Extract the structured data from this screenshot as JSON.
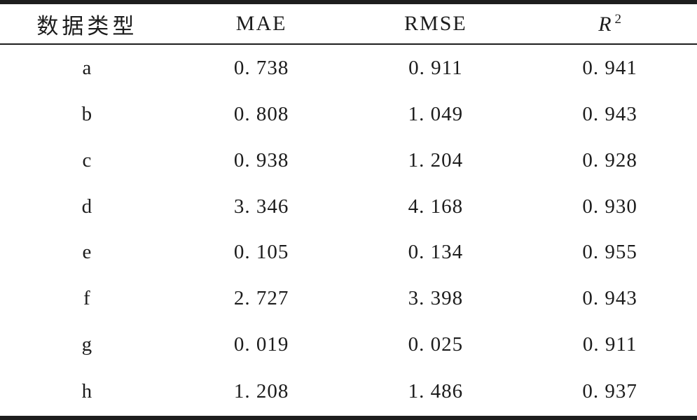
{
  "table": {
    "columns": {
      "type_label": "数据类型",
      "mae_label": "MAE",
      "rmse_label": "RMSE",
      "r2_base": "R",
      "r2_sup": "2"
    },
    "rows": [
      [
        "a",
        "0. 738",
        "0. 911",
        "0. 941"
      ],
      [
        "b",
        "0. 808",
        "1. 049",
        "0. 943"
      ],
      [
        "c",
        "0. 938",
        "1. 204",
        "0. 928"
      ],
      [
        "d",
        "3. 346",
        "4. 168",
        "0. 930"
      ],
      [
        "e",
        "0. 105",
        "0. 134",
        "0. 955"
      ],
      [
        "f",
        "2. 727",
        "3. 398",
        "0. 943"
      ],
      [
        "g",
        "0. 019",
        "0. 025",
        "0. 911"
      ],
      [
        "h",
        "1. 208",
        "1. 486",
        "0. 937"
      ]
    ],
    "cell_names": [
      "type-cell",
      "mae-cell",
      "rmse-cell",
      "r2-cell"
    ]
  },
  "style": {
    "rule_color": "#1e1e1e",
    "text_color": "#1c1c1c",
    "background": "#ffffff"
  },
  "chart_data": {
    "type": "table",
    "title": "",
    "columns": [
      "数据类型",
      "MAE",
      "RMSE",
      "R2"
    ],
    "categories": [
      "a",
      "b",
      "c",
      "d",
      "e",
      "f",
      "g",
      "h"
    ],
    "series": [
      {
        "name": "MAE",
        "values": [
          0.738,
          0.808,
          0.938,
          3.346,
          0.105,
          2.727,
          0.019,
          1.208
        ]
      },
      {
        "name": "RMSE",
        "values": [
          0.911,
          1.049,
          1.204,
          4.168,
          0.134,
          3.398,
          0.025,
          1.486
        ]
      },
      {
        "name": "R2",
        "values": [
          0.941,
          0.943,
          0.928,
          0.93,
          0.955,
          0.943,
          0.911,
          0.937
        ]
      }
    ]
  }
}
